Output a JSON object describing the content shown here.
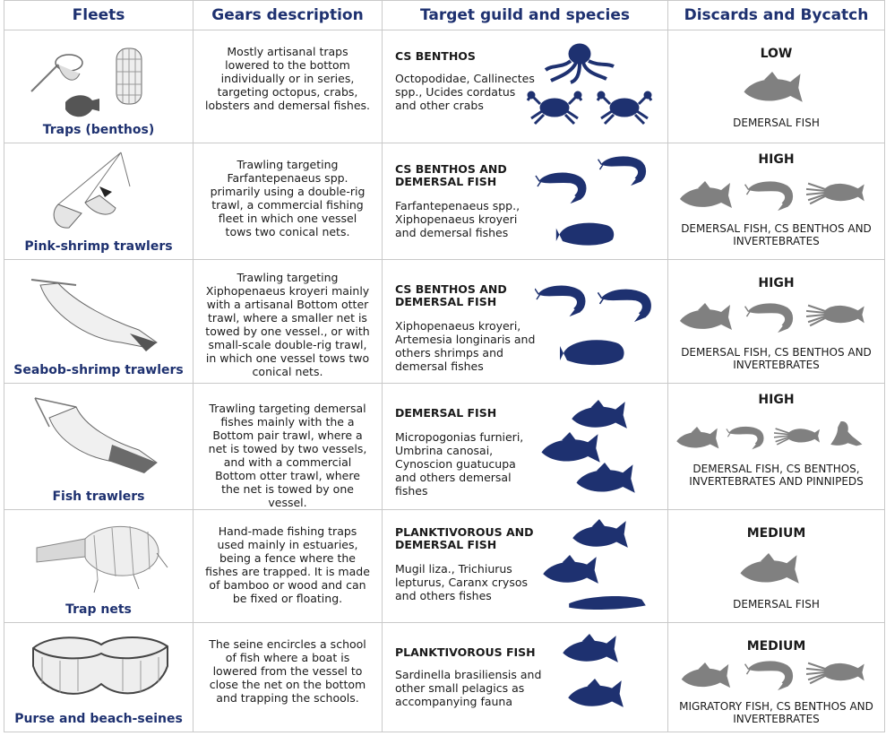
{
  "headers": {
    "fleets": "Fleets",
    "gears": "Gears description",
    "target": "Target guild and species",
    "discards": "Discards and Bycatch"
  },
  "colors": {
    "header_text": "#1e3170",
    "target_silhouette": "#1e3170",
    "bycatch_silhouette": "#808080",
    "grid": "#c9c9c9"
  },
  "rows": [
    {
      "fleet": "Traps (benthos)",
      "gear": "Mostly artisanal traps lowered to the bottom individually or in series, targeting octopus, crabs, lobsters and demersal fishes.",
      "guild": "CS BENTHOS",
      "species": "Octopodidae, Callinectes spp., Ucides cordatus and other crabs",
      "level": "LOW",
      "discards": "DEMERSAL FISH",
      "target_icons": [
        "octopus-icon",
        "crab-icon",
        "crab-icon"
      ],
      "bycatch_icons": [
        "fish-icon"
      ]
    },
    {
      "fleet": "Pink-shrimp trawlers",
      "gear": "Trawling targeting Farfantepenaeus spp. primarily using a double-rig trawl, a commercial fishing fleet in which one vessel tows two conical nets.",
      "guild": "CS BENTHOS AND DEMERSAL FISH",
      "species": "Farfantepenaeus spp., Xiphopenaeus kroyeri and demersal fishes",
      "level": "HIGH",
      "discards": "DEMERSAL FISH, CS BENTHOS AND INVERTEBRATES",
      "target_icons": [
        "shrimp-icon",
        "shrimp-icon",
        "flatfish-icon"
      ],
      "bycatch_icons": [
        "fish-icon",
        "shrimp-icon",
        "squid-icon"
      ]
    },
    {
      "fleet": "Seabob-shrimp trawlers",
      "gear": "Trawling targeting Xiphopenaeus kroyeri mainly with a artisanal Bottom otter trawl, where a smaller net is towed by one vessel., or with small-scale double-rig trawl, in which one vessel tows two conical nets.",
      "guild": "CS BENTHOS AND DEMERSAL FISH",
      "species": "Xiphopenaeus kroyeri, Artemesia longinaris and others shrimps and demersal fishes",
      "level": "HIGH",
      "discards": "DEMERSAL FISH, CS BENTHOS AND INVERTEBRATES",
      "target_icons": [
        "shrimp-icon",
        "shrimp-icon",
        "flatfish-icon"
      ],
      "bycatch_icons": [
        "fish-icon",
        "shrimp-icon",
        "squid-icon"
      ]
    },
    {
      "fleet": "Fish trawlers",
      "gear": "Trawling targeting demersal fishes mainly with the a Bottom pair trawl, where a net is towed by two vessels, and with a commercial Bottom otter trawl, where the net is towed by one vessel.",
      "guild": "DEMERSAL FISH",
      "species": "Micropogonias furnieri, Umbrina canosai, Cynoscion guatucupa and others demersal fishes",
      "level": "HIGH",
      "discards": "DEMERSAL FISH, CS BENTHOS, INVERTEBRATES AND PINNIPEDS",
      "target_icons": [
        "fish-icon",
        "fish-icon",
        "fish-icon"
      ],
      "bycatch_icons": [
        "fish-icon",
        "shrimp-icon",
        "squid-icon",
        "sea-lion-icon"
      ]
    },
    {
      "fleet": "Trap nets",
      "gear": "Hand-made fishing traps used mainly in estuaries, being a fence where the fishes are trapped. It is made of bamboo or wood and can be fixed or floating.",
      "guild": "PLANKTIVOROUS AND DEMERSAL FISH",
      "species": "Mugil liza., Trichiurus lepturus, Caranx crysos and others fishes",
      "level": "MEDIUM",
      "discards": "DEMERSAL FISH",
      "target_icons": [
        "fish-icon",
        "fish-icon",
        "eel-icon"
      ],
      "bycatch_icons": [
        "fish-icon"
      ]
    },
    {
      "fleet": "Purse and beach-seines",
      "gear": "The seine encircles a school of fish where a boat is lowered from the vessel to close the net on the bottom and trapping the schools.",
      "guild": "PLANKTIVOROUS FISH",
      "species": "Sardinella brasiliensis and other small pelagics as accompanying fauna",
      "level": "MEDIUM",
      "discards": "MIGRATORY FISH, CS BENTHOS AND INVERTEBRATES",
      "target_icons": [
        "fish-icon",
        "fish-icon"
      ],
      "bycatch_icons": [
        "fish-icon",
        "shrimp-icon",
        "squid-icon"
      ]
    }
  ]
}
